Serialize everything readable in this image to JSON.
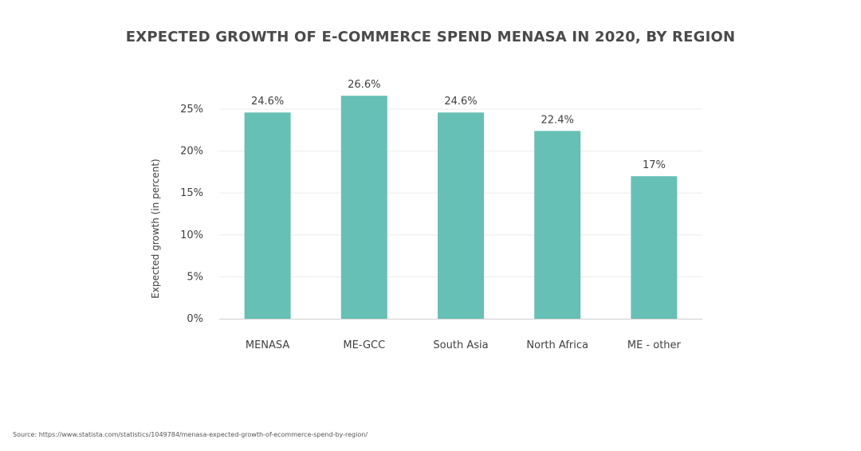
{
  "chart_data": {
    "type": "bar",
    "title": "EXPECTED GROWTH OF E-COMMERCE SPEND MENASA IN 2020, BY REGION",
    "categories": [
      "MENASA",
      "ME-GCC",
      "South Asia",
      "North Africa",
      "ME - other"
    ],
    "values": [
      24.6,
      26.6,
      24.6,
      22.4,
      17
    ],
    "data_labels": [
      "24.6%",
      "26.6%",
      "24.6%",
      "22.4%",
      "17%"
    ],
    "xlabel": "",
    "ylabel": "Expected growth (in percent)",
    "ylim": [
      0,
      25
    ],
    "yticks": [
      0,
      5,
      10,
      15,
      20,
      25
    ],
    "ytick_labels": [
      "0%",
      "5%",
      "10%",
      "15%",
      "20%",
      "25%"
    ],
    "grid": true,
    "bar_color": "#67c0b5",
    "grid_color": "#ececec",
    "axis_color": "#cfcfcf"
  },
  "footer": {
    "source": "Source: https://www.statista.com/statistics/1049784/menasa-expected-growth-of-ecommerce-spend-by-region/"
  }
}
